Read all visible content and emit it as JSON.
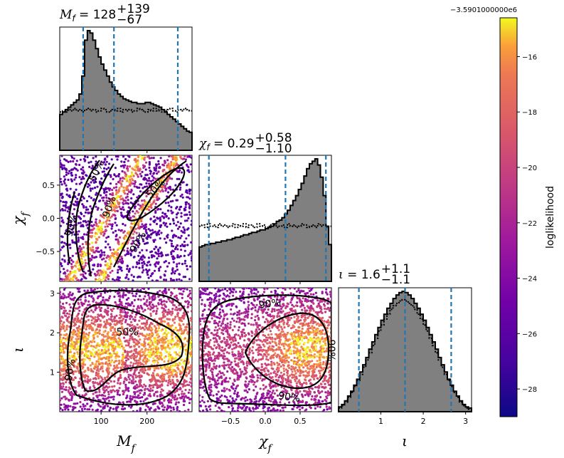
{
  "chart_data": {
    "type": "scatter",
    "parameters": [
      {
        "name": "M_f",
        "label": "M_f",
        "range": [
          10,
          298
        ],
        "ticks": [
          100,
          200
        ],
        "tick_labels": [
          "100",
          "200"
        ]
      },
      {
        "name": "chi_f",
        "label": "χ_f",
        "range": [
          -0.95,
          0.95
        ],
        "ticks": [
          -0.5,
          0.0,
          0.5
        ],
        "tick_labels": [
          "−0.5",
          "0.0",
          "0.5"
        ]
      },
      {
        "name": "iota",
        "label": "ι",
        "range": [
          0.0,
          3.14
        ],
        "ticks": [
          1,
          2,
          3
        ],
        "tick_labels": [
          "1",
          "2",
          "3"
        ]
      }
    ],
    "titles": {
      "M_f": {
        "symbol": "M",
        "sub": "f",
        "value": "128",
        "plus": "+139",
        "minus": "−67"
      },
      "chi_f": {
        "symbol": "χ",
        "sub": "f",
        "value": "0.29",
        "plus": "+0.58",
        "minus": "−1.10"
      },
      "iota": {
        "symbol": "ι",
        "sub": "",
        "value": "1.6",
        "plus": "+1.1",
        "minus": "−1.1"
      }
    },
    "quantiles": {
      "M_f": [
        61,
        128,
        267
      ],
      "chi_f": [
        -0.81,
        0.29,
        0.87
      ],
      "iota": [
        0.48,
        1.57,
        2.66
      ]
    },
    "histograms": {
      "M_f": {
        "posterior": [
          0.3,
          0.32,
          0.34,
          0.36,
          0.38,
          0.4,
          0.42,
          0.47,
          0.62,
          0.92,
          1.0,
          0.98,
          0.92,
          0.85,
          0.78,
          0.72,
          0.67,
          0.62,
          0.57,
          0.53,
          0.5,
          0.47,
          0.45,
          0.43,
          0.42,
          0.41,
          0.4,
          0.4,
          0.39,
          0.39,
          0.39,
          0.4,
          0.4,
          0.39,
          0.38,
          0.37,
          0.36,
          0.34,
          0.32,
          0.3,
          0.28,
          0.26,
          0.24,
          0.22,
          0.2,
          0.18,
          0.16,
          0.15
        ],
        "prior": [
          0.32,
          0.33,
          0.32,
          0.34,
          0.33,
          0.35,
          0.33,
          0.34,
          0.32,
          0.34,
          0.35,
          0.33,
          0.34,
          0.32,
          0.33,
          0.35,
          0.34,
          0.32,
          0.33,
          0.34,
          0.33,
          0.35,
          0.32,
          0.34,
          0.33,
          0.34,
          0.32,
          0.33,
          0.35,
          0.34,
          0.33,
          0.32,
          0.34,
          0.33,
          0.35,
          0.33,
          0.34,
          0.32,
          0.33,
          0.34,
          0.35,
          0.33,
          0.32,
          0.34,
          0.33,
          0.35,
          0.34,
          0.33
        ]
      },
      "chi_f": {
        "posterior": [
          0.28,
          0.29,
          0.3,
          0.3,
          0.31,
          0.31,
          0.32,
          0.32,
          0.33,
          0.33,
          0.34,
          0.34,
          0.35,
          0.36,
          0.36,
          0.37,
          0.38,
          0.38,
          0.39,
          0.4,
          0.4,
          0.41,
          0.42,
          0.42,
          0.43,
          0.44,
          0.45,
          0.47,
          0.49,
          0.5,
          0.52,
          0.55,
          0.58,
          0.62,
          0.66,
          0.7,
          0.75,
          0.8,
          0.86,
          0.92,
          0.96,
          0.98,
          1.0,
          0.95,
          0.85,
          0.7,
          0.45,
          0.3
        ],
        "prior": [
          0.45,
          0.46,
          0.44,
          0.47,
          0.45,
          0.46,
          0.44,
          0.47,
          0.45,
          0.46,
          0.44,
          0.45,
          0.47,
          0.44,
          0.46,
          0.45,
          0.47,
          0.44,
          0.46,
          0.45,
          0.44,
          0.47,
          0.45,
          0.46,
          0.44,
          0.45,
          0.47,
          0.46,
          0.44,
          0.45,
          0.46,
          0.44,
          0.47,
          0.45,
          0.46,
          0.44,
          0.45,
          0.47,
          0.46,
          0.44,
          0.45,
          0.46,
          0.44,
          0.47,
          0.45,
          0.46,
          0.44,
          0.45
        ]
      },
      "iota": {
        "posterior": [
          0.04,
          0.06,
          0.09,
          0.13,
          0.17,
          0.22,
          0.27,
          0.33,
          0.39,
          0.45,
          0.52,
          0.58,
          0.64,
          0.7,
          0.76,
          0.81,
          0.86,
          0.9,
          0.94,
          0.97,
          0.99,
          1.0,
          0.99,
          0.97,
          0.94,
          0.9,
          0.86,
          0.81,
          0.76,
          0.7,
          0.64,
          0.58,
          0.52,
          0.45,
          0.39,
          0.33,
          0.27,
          0.22,
          0.17,
          0.13,
          0.09,
          0.06,
          0.04,
          0.03
        ],
        "prior": [
          0.03,
          0.05,
          0.08,
          0.12,
          0.16,
          0.21,
          0.26,
          0.31,
          0.37,
          0.43,
          0.49,
          0.55,
          0.61,
          0.67,
          0.72,
          0.77,
          0.81,
          0.85,
          0.88,
          0.9,
          0.92,
          0.93,
          0.92,
          0.9,
          0.88,
          0.85,
          0.81,
          0.77,
          0.72,
          0.67,
          0.61,
          0.55,
          0.49,
          0.43,
          0.37,
          0.31,
          0.26,
          0.21,
          0.16,
          0.12,
          0.08,
          0.05,
          0.03,
          0.02
        ]
      }
    },
    "contour_labels": {
      "chi_f_vs_M_f": [
        "50%",
        "90%",
        "50%",
        "90%",
        "90%"
      ],
      "iota_vs_M_f": [
        "50%",
        "90%"
      ],
      "iota_vs_chi_f": [
        "90%",
        "90%",
        "90%"
      ]
    },
    "colorbar": {
      "label": "loglikelihood",
      "offset": "−3.5901000000e6",
      "range": [
        -29,
        -14.6
      ],
      "ticks": [
        -28,
        -26,
        -24,
        -22,
        -20,
        -18,
        -16
      ],
      "tick_labels": [
        "−28",
        "−26",
        "−24",
        "−22",
        "−20",
        "−18",
        "−16"
      ],
      "colormap": "plasma"
    },
    "colors": {
      "quantile_line": "#1f77b4",
      "posterior_fill": "#808080"
    }
  }
}
